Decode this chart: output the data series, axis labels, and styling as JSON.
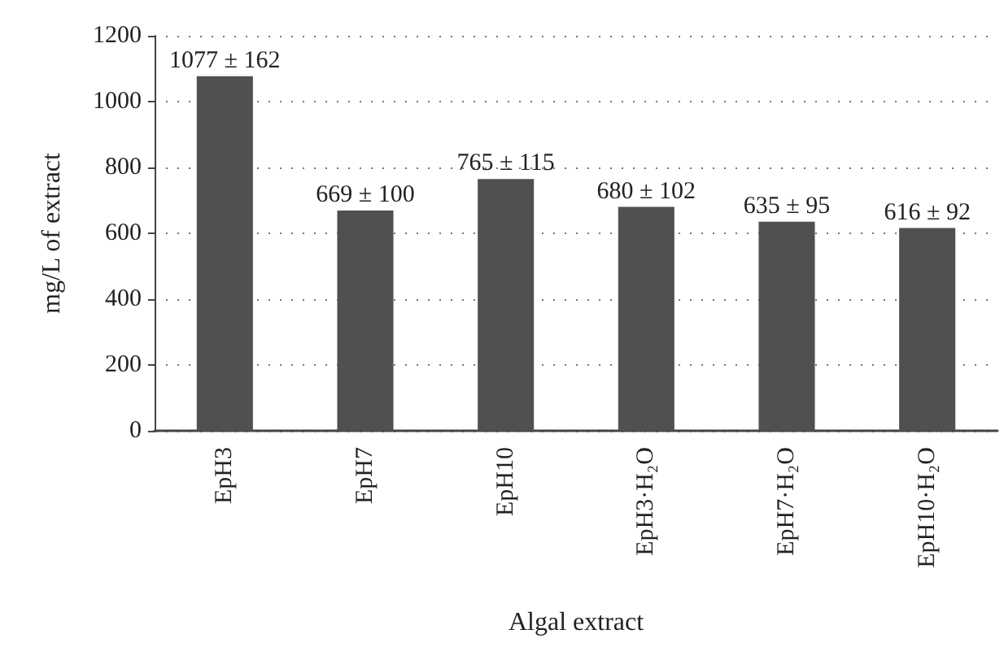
{
  "chart_data": {
    "type": "bar",
    "xlabel": "Algal extract",
    "ylabel": "mg/L of extract",
    "categories": [
      "EpH3",
      "EpH7",
      "EpH10",
      "EpH3·H₂O",
      "EpH7·H₂O",
      "EpH10·H₂O"
    ],
    "values": [
      1077,
      669,
      765,
      680,
      635,
      616
    ],
    "value_labels": [
      "1077 ± 162",
      "669 ± 100",
      "765 ± 115",
      "680 ± 102",
      "635 ± 95",
      "616 ± 92"
    ],
    "color": "#505050",
    "ylim": [
      0,
      1200
    ],
    "yticks": [
      0,
      200,
      400,
      600,
      800,
      1000,
      1200
    ],
    "grid": "y"
  }
}
